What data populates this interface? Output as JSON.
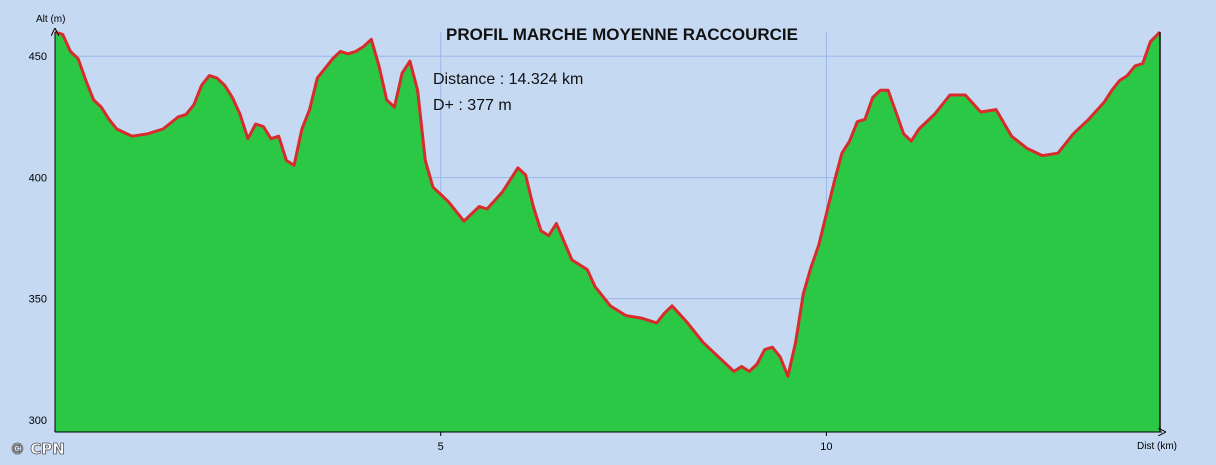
{
  "chart_data": {
    "type": "area",
    "title": "PROFIL MARCHE MOYENNE RACCOURCIE",
    "xlabel": "Dist (km)",
    "ylabel": "Alt (m)",
    "xlim": [
      0,
      14.324
    ],
    "ylim": [
      295,
      460
    ],
    "x_ticks": [
      {
        "value": 5,
        "label": "5"
      },
      {
        "value": 10,
        "label": "10"
      }
    ],
    "y_ticks": [
      {
        "value": 300,
        "label": "300"
      },
      {
        "value": 350,
        "label": "350"
      },
      {
        "value": 400,
        "label": "400"
      },
      {
        "value": 450,
        "label": "450"
      }
    ],
    "grid": true,
    "annotations": {
      "distance": "Distance : 14.324 km",
      "elevation_gain": "D+ : 377 m"
    },
    "watermark": "© CPN",
    "colors": {
      "background": "#c5d9f3",
      "fill": "#2ac845",
      "line": "#d92b2b",
      "grid": "#9bb8e8"
    },
    "series": [
      {
        "x": [
          0,
          0.1,
          0.2,
          0.3,
          0.4,
          0.5,
          0.6,
          0.7,
          0.8,
          1.0,
          1.2,
          1.4,
          1.6,
          1.7,
          1.8,
          1.9,
          2.0,
          2.1,
          2.2,
          2.3,
          2.4,
          2.5,
          2.6,
          2.7,
          2.8,
          2.9,
          3.0,
          3.1,
          3.2,
          3.3,
          3.4,
          3.5,
          3.6,
          3.7,
          3.8,
          3.9,
          4.0,
          4.1,
          4.2,
          4.3,
          4.4,
          4.5,
          4.6,
          4.7,
          4.8,
          4.9,
          5.0,
          5.1,
          5.3,
          5.5,
          5.6,
          5.8,
          6.0,
          6.1,
          6.2,
          6.3,
          6.4,
          6.5,
          6.7,
          6.9,
          7.0,
          7.2,
          7.4,
          7.6,
          7.8,
          7.9,
          8.0,
          8.2,
          8.4,
          8.6,
          8.8,
          8.9,
          9.0,
          9.1,
          9.2,
          9.3,
          9.4,
          9.5,
          9.6,
          9.7,
          9.8,
          9.9,
          10.0,
          10.1,
          10.2,
          10.3,
          10.4,
          10.5,
          10.6,
          10.7,
          10.8,
          10.9,
          11.0,
          11.1,
          11.2,
          11.4,
          11.6,
          11.8,
          12.0,
          12.2,
          12.4,
          12.6,
          12.8,
          13.0,
          13.1,
          13.2,
          13.4,
          13.6,
          13.7,
          13.8,
          13.9,
          14.0,
          14.1,
          14.2,
          14.324
        ],
        "values": [
          460,
          459,
          452,
          449,
          440,
          432,
          429,
          424,
          420,
          417,
          418,
          420,
          425,
          426,
          430,
          438,
          442,
          441,
          438,
          433,
          426,
          416,
          422,
          421,
          416,
          417,
          407,
          405,
          420,
          428,
          441,
          445,
          449,
          452,
          451,
          452,
          454,
          457,
          446,
          432,
          429,
          443,
          448,
          436,
          407,
          396,
          393,
          390,
          382,
          388,
          387,
          394,
          404,
          401,
          388,
          378,
          376,
          381,
          366,
          362,
          355,
          347,
          343,
          342,
          340,
          344,
          347,
          340,
          332,
          326,
          320,
          322,
          320,
          323,
          329,
          330,
          326,
          318,
          332,
          352,
          363,
          372,
          385,
          398,
          410,
          415,
          423,
          424,
          433,
          436,
          436,
          427,
          418,
          415,
          420,
          426,
          434,
          434,
          427,
          428,
          417,
          412,
          409,
          410,
          414,
          418,
          424,
          431,
          436,
          440,
          442,
          446,
          447,
          456,
          460
        ]
      }
    ]
  }
}
